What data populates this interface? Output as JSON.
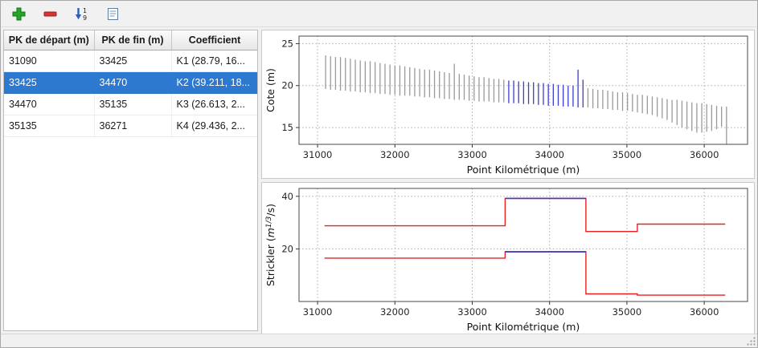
{
  "toolbar": {
    "icons": [
      {
        "name": "add-icon",
        "meaning": "add row",
        "color": "#28a428"
      },
      {
        "name": "remove-icon",
        "meaning": "remove row",
        "color": "#d93434"
      },
      {
        "name": "sort-numeric-icon",
        "meaning": "sort 1 to 9",
        "color": "#2d5fb0"
      },
      {
        "name": "report-icon",
        "meaning": "table report",
        "color": "#5a7da0"
      }
    ]
  },
  "table": {
    "headers": [
      "PK de départ (m)",
      "PK de fin (m)",
      "Coefficient"
    ],
    "rows": [
      {
        "pk_start": "31090",
        "pk_end": "33425",
        "coefficient": "K1 (28.79, 16...",
        "selected": false
      },
      {
        "pk_start": "33425",
        "pk_end": "34470",
        "coefficient": "K2 (39.211, 18...",
        "selected": true
      },
      {
        "pk_start": "34470",
        "pk_end": "35135",
        "coefficient": "K3 (26.613, 2...",
        "selected": false
      },
      {
        "pk_start": "35135",
        "pk_end": "36271",
        "coefficient": "K4 (29.436, 2...",
        "selected": false
      }
    ],
    "selection_color": "#2e79d0"
  },
  "chart_data": [
    {
      "id": "cote",
      "type": "bar",
      "title": "",
      "xlabel": "Point Kilométrique (m)",
      "ylabel": "Cote (m)",
      "xlim": [
        30760,
        36560
      ],
      "ylim": [
        13.0,
        25.9
      ],
      "xticks": [
        31000,
        32000,
        33000,
        34000,
        35000,
        36000
      ],
      "yticks": [
        15,
        20,
        25
      ],
      "grid": true,
      "legend": "none",
      "highlight_range": [
        33425,
        34470
      ],
      "colors": {
        "bar": "#9a9a9a",
        "highlight": "#3c3ccf"
      },
      "bars": [
        [
          31104,
          19.6,
          23.6
        ],
        [
          31168,
          19.5,
          23.5
        ],
        [
          31232,
          19.5,
          23.4
        ],
        [
          31296,
          19.4,
          23.4
        ],
        [
          31360,
          19.4,
          23.3
        ],
        [
          31424,
          19.3,
          23.2
        ],
        [
          31488,
          19.3,
          23.1
        ],
        [
          31552,
          19.2,
          23.0
        ],
        [
          31616,
          19.2,
          22.9
        ],
        [
          31680,
          19.1,
          22.9
        ],
        [
          31744,
          19.1,
          22.8
        ],
        [
          31808,
          19.0,
          22.7
        ],
        [
          31872,
          19.0,
          22.6
        ],
        [
          31936,
          18.9,
          22.5
        ],
        [
          32000,
          18.9,
          22.4
        ],
        [
          32064,
          18.8,
          22.4
        ],
        [
          32128,
          18.8,
          22.3
        ],
        [
          32192,
          18.8,
          22.2
        ],
        [
          32256,
          18.7,
          22.1
        ],
        [
          32320,
          18.7,
          22.0
        ],
        [
          32384,
          18.6,
          21.9
        ],
        [
          32448,
          18.6,
          21.9
        ],
        [
          32512,
          18.5,
          21.8
        ],
        [
          32576,
          18.5,
          21.7
        ],
        [
          32640,
          18.4,
          21.6
        ],
        [
          32704,
          18.4,
          21.5
        ],
        [
          32768,
          18.3,
          22.6
        ],
        [
          32832,
          18.3,
          21.4
        ],
        [
          32896,
          18.3,
          21.3
        ],
        [
          32960,
          18.2,
          21.2
        ],
        [
          33024,
          18.2,
          21.1
        ],
        [
          33088,
          18.1,
          21.0
        ],
        [
          33152,
          18.1,
          21.0
        ],
        [
          33216,
          18.1,
          20.9
        ],
        [
          33280,
          18.0,
          20.8
        ],
        [
          33344,
          18.0,
          20.8
        ],
        [
          33408,
          18.0,
          20.7
        ],
        [
          33472,
          17.9,
          20.6
        ],
        [
          33536,
          17.9,
          20.6
        ],
        [
          33600,
          17.9,
          20.5
        ],
        [
          33664,
          17.8,
          20.5
        ],
        [
          33728,
          17.8,
          20.4
        ],
        [
          33792,
          17.8,
          20.4
        ],
        [
          33856,
          17.7,
          20.3
        ],
        [
          33920,
          17.7,
          20.3
        ],
        [
          33984,
          17.6,
          20.2
        ],
        [
          34048,
          17.6,
          20.2
        ],
        [
          34112,
          17.6,
          20.1
        ],
        [
          34176,
          17.5,
          20.1
        ],
        [
          34240,
          17.5,
          20.0
        ],
        [
          34304,
          17.5,
          20.0
        ],
        [
          34368,
          17.4,
          21.9
        ],
        [
          34432,
          17.4,
          20.7
        ],
        [
          34496,
          17.4,
          19.7
        ],
        [
          34560,
          17.3,
          19.6
        ],
        [
          34624,
          17.3,
          19.5
        ],
        [
          34688,
          17.2,
          19.5
        ],
        [
          34752,
          17.2,
          19.4
        ],
        [
          34816,
          17.1,
          19.3
        ],
        [
          34880,
          17.1,
          19.2
        ],
        [
          34944,
          17.0,
          19.2
        ],
        [
          35008,
          17.0,
          19.1
        ],
        [
          35072,
          16.9,
          19.0
        ],
        [
          35136,
          16.8,
          18.9
        ],
        [
          35200,
          16.7,
          18.9
        ],
        [
          35264,
          16.6,
          18.8
        ],
        [
          35328,
          16.5,
          18.7
        ],
        [
          35392,
          16.3,
          18.6
        ],
        [
          35456,
          16.1,
          18.5
        ],
        [
          35520,
          15.9,
          18.4
        ],
        [
          35584,
          15.6,
          18.3
        ],
        [
          35648,
          15.3,
          18.3
        ],
        [
          35712,
          15.0,
          18.2
        ],
        [
          35776,
          14.8,
          18.1
        ],
        [
          35840,
          14.6,
          18.0
        ],
        [
          35904,
          14.4,
          17.9
        ],
        [
          35968,
          14.4,
          17.9
        ],
        [
          36032,
          14.5,
          17.8
        ],
        [
          36096,
          14.6,
          17.7
        ],
        [
          36160,
          14.8,
          17.6
        ],
        [
          36224,
          15.1,
          17.5
        ],
        [
          36288,
          13.0,
          17.5
        ]
      ]
    },
    {
      "id": "strickler",
      "type": "line",
      "title": "",
      "xlabel": "Point Kilométrique (m)",
      "ylabel": "Strickler (m1/3/s)",
      "ylabel_parts": {
        "pre": "Strickler (",
        "unit": "m",
        "sup": "1/3",
        "post": "/s)"
      },
      "xlim": [
        30760,
        36560
      ],
      "ylim": [
        0,
        43
      ],
      "xticks": [
        31000,
        32000,
        33000,
        34000,
        35000,
        36000
      ],
      "yticks": [
        20,
        40
      ],
      "grid": true,
      "legend": "none",
      "highlight_range": [
        33425,
        34470
      ],
      "highlight_color": "#3c3ccf",
      "series": [
        {
          "name": "coefficient-1",
          "color": "#e82020",
          "steps": [
            [
              31090,
              33425,
              28.79
            ],
            [
              33425,
              34470,
              39.211
            ],
            [
              34470,
              35135,
              26.613
            ],
            [
              35135,
              36271,
              29.436
            ]
          ]
        },
        {
          "name": "coefficient-2",
          "color": "#e82020",
          "steps": [
            [
              31090,
              33425,
              16.5
            ],
            [
              33425,
              34470,
              18.9
            ],
            [
              34470,
              35135,
              2.9
            ],
            [
              35135,
              36271,
              2.4
            ]
          ]
        }
      ]
    }
  ],
  "statusbar": {
    "text": ""
  }
}
